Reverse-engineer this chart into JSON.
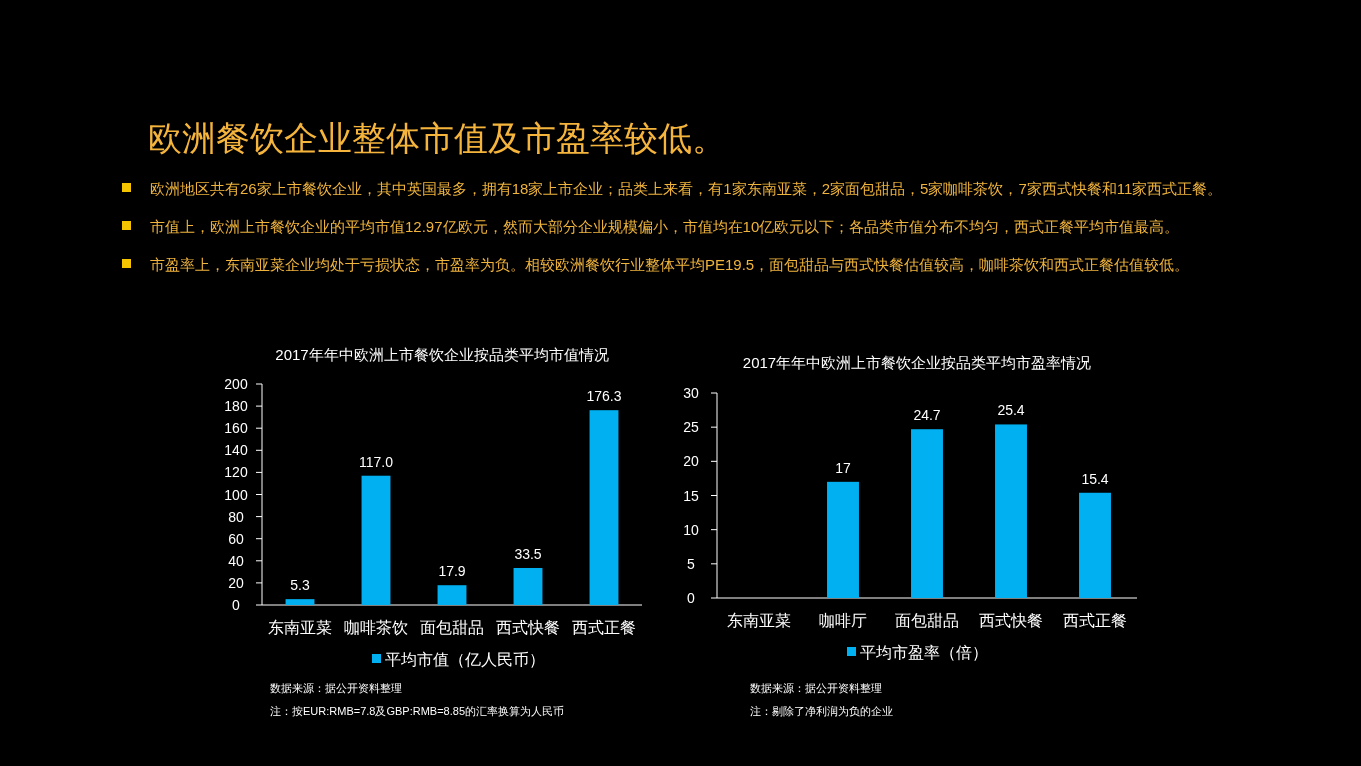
{
  "chart_data": [
    {
      "type": "other",
      "title": "欧洲餐饮企业整体市值及市盈率较低。",
      "annotations": [
        "欧洲地区共有26家上市餐饮企业，其中英国最多，拥有18家上市企业；品类上来看，有1家东南亚菜，2家面包甜品，5家咖啡茶饮，7家西式快餐和11家西式正餐。",
        "市值上，欧洲上市餐饮企业的平均市值12.97亿欧元，然而大部分企业规模偏小，市值均在10亿欧元以下；各品类市值分布不均匀，西式正餐平均市值最高。",
        "市盈率上，东南亚菜企业均处于亏损状态，市盈率为负。相较欧洲餐饮行业整体平均PE19.5，面包甜品与西式快餐估值较高，咖啡茶饮和西式正餐估值较低。"
      ]
    },
    {
      "type": "bar",
      "title": "2017年年中欧洲上市餐饮企业按品类平均市值情况",
      "categories": [
        "东南亚菜",
        "咖啡茶饮",
        "面包甜品",
        "西式快餐",
        "西式正餐"
      ],
      "series": [
        {
          "name": "平均市值（亿人民币）",
          "color": "#00b0f0",
          "values": [
            5.3,
            117.0,
            17.9,
            33.5,
            176.3
          ],
          "value_labels": [
            "5.3",
            "117.0",
            "17.9",
            "33.5",
            "176.3"
          ]
        }
      ],
      "ylim": [
        0,
        200
      ],
      "yticks": [
        0,
        20,
        40,
        60,
        80,
        100,
        120,
        140,
        160,
        180,
        200
      ],
      "legend": "bottom",
      "annotations": [
        "数据来源：据公开资料整理",
        "注：按EUR:RMB=7.8及GBP:RMB=8.85的汇率换算为人民币"
      ]
    },
    {
      "type": "bar",
      "title": "2017年年中欧洲上市餐饮企业按品类平均市盈率情况",
      "categories": [
        "东南亚菜",
        "咖啡厅",
        "面包甜品",
        "西式快餐",
        "西式正餐"
      ],
      "series": [
        {
          "name": "平均市盈率（倍）",
          "color": "#00b0f0",
          "values": [
            null,
            17,
            24.7,
            25.4,
            15.4
          ]
        }
      ],
      "data_labels": true,
      "ylim": [
        0,
        30
      ],
      "yticks": [
        0,
        5,
        10,
        15,
        20,
        25,
        30
      ],
      "legend": "bottom",
      "annotations": [
        "数据来源：据公开资料整理",
        "注：剔除了净利润为负的企业"
      ]
    }
  ]
}
